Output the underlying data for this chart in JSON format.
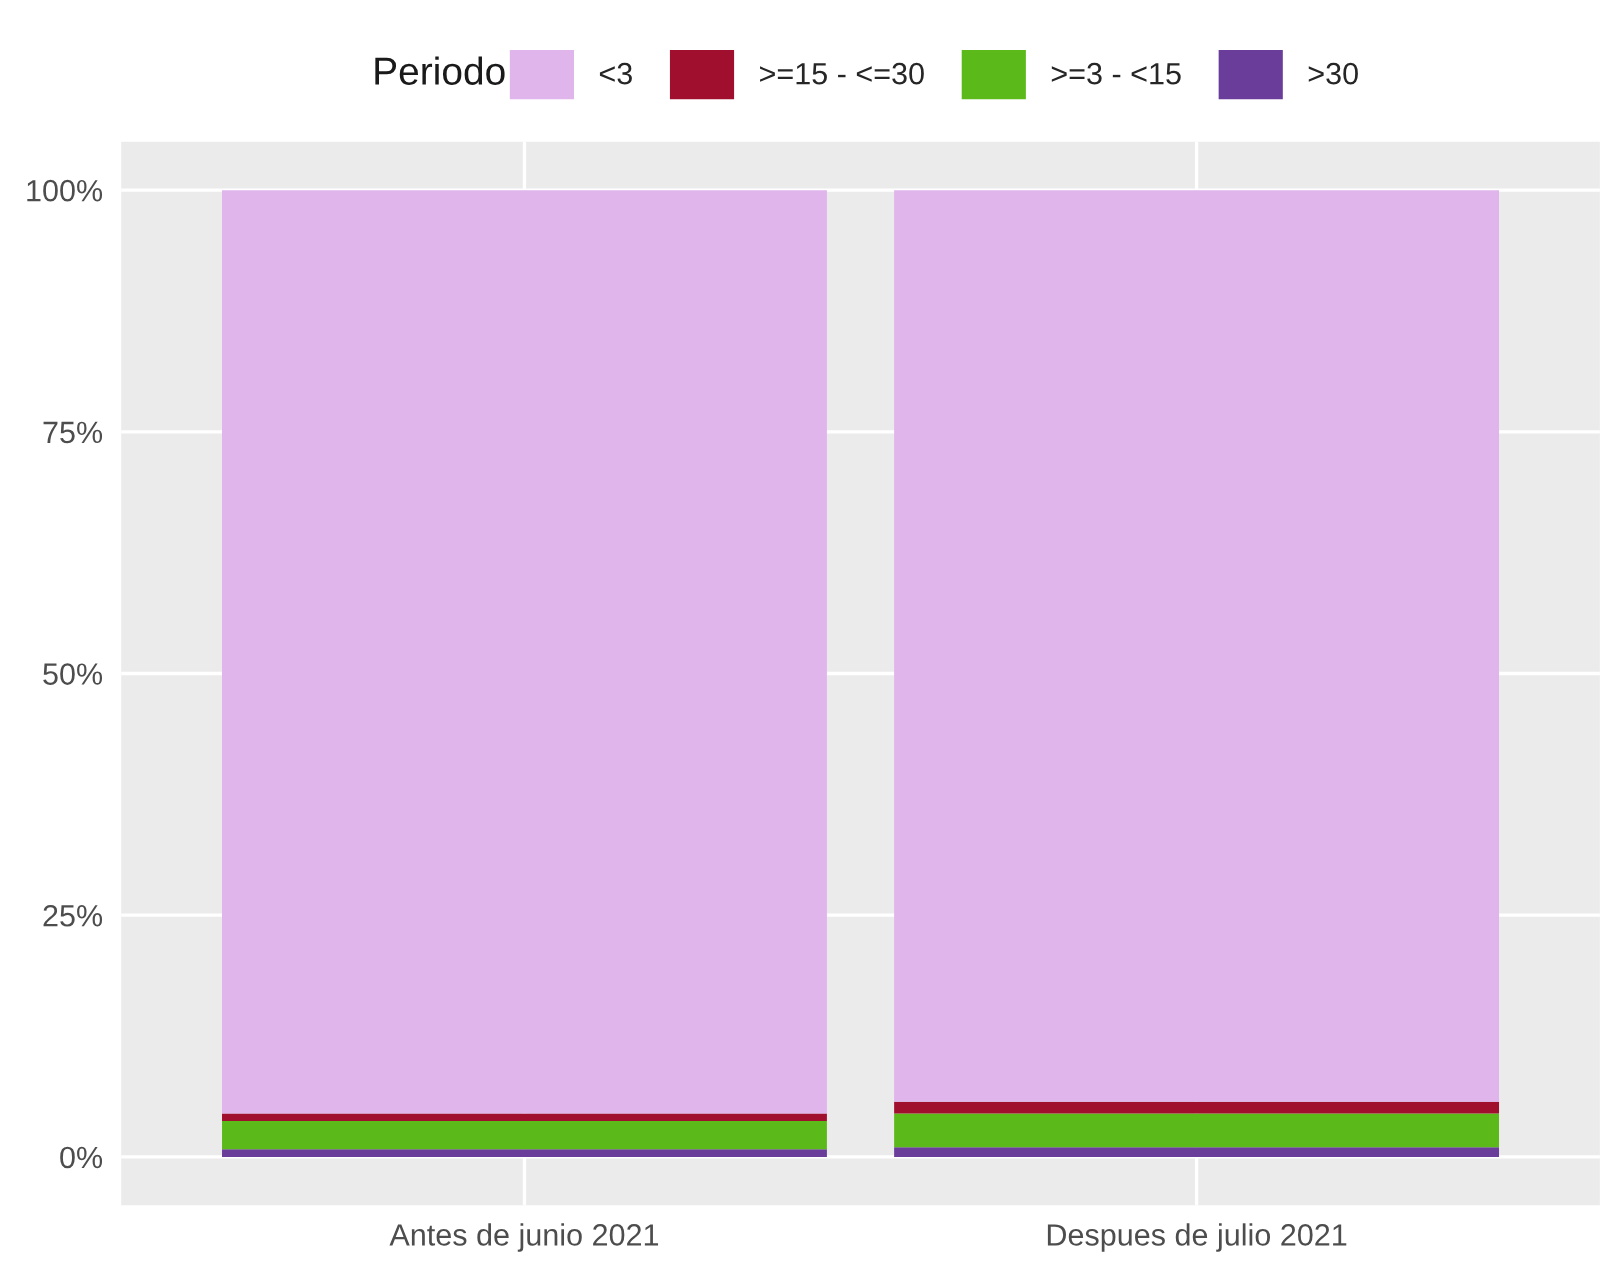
{
  "chart_data": {
    "type": "bar",
    "stacked": true,
    "legend_title": "Periodo",
    "legend": "top",
    "categories": [
      "Antes de junio 2021",
      "Despues de julio 2021"
    ],
    "series": [
      {
        "name": ">30",
        "color": "#6a3d9a",
        "values": [
          0.8,
          1.0
        ]
      },
      {
        "name": ">=3 - <15",
        "color": "#5cb91a",
        "values": [
          2.9,
          3.5
        ]
      },
      {
        "name": ">=15 - <=30",
        "color": "#a0102e",
        "values": [
          0.8,
          1.2
        ]
      },
      {
        "name": "<3",
        "color": "#dfb5eb",
        "values": [
          95.5,
          94.3
        ]
      }
    ],
    "ylim": [
      -5,
      105
    ],
    "yticks": [
      {
        "value": 0,
        "label": "0%"
      },
      {
        "value": 25,
        "label": "25%"
      },
      {
        "value": 50,
        "label": "50%"
      },
      {
        "value": 75,
        "label": "75%"
      },
      {
        "value": 100,
        "label": "100%"
      }
    ],
    "grid": true
  }
}
